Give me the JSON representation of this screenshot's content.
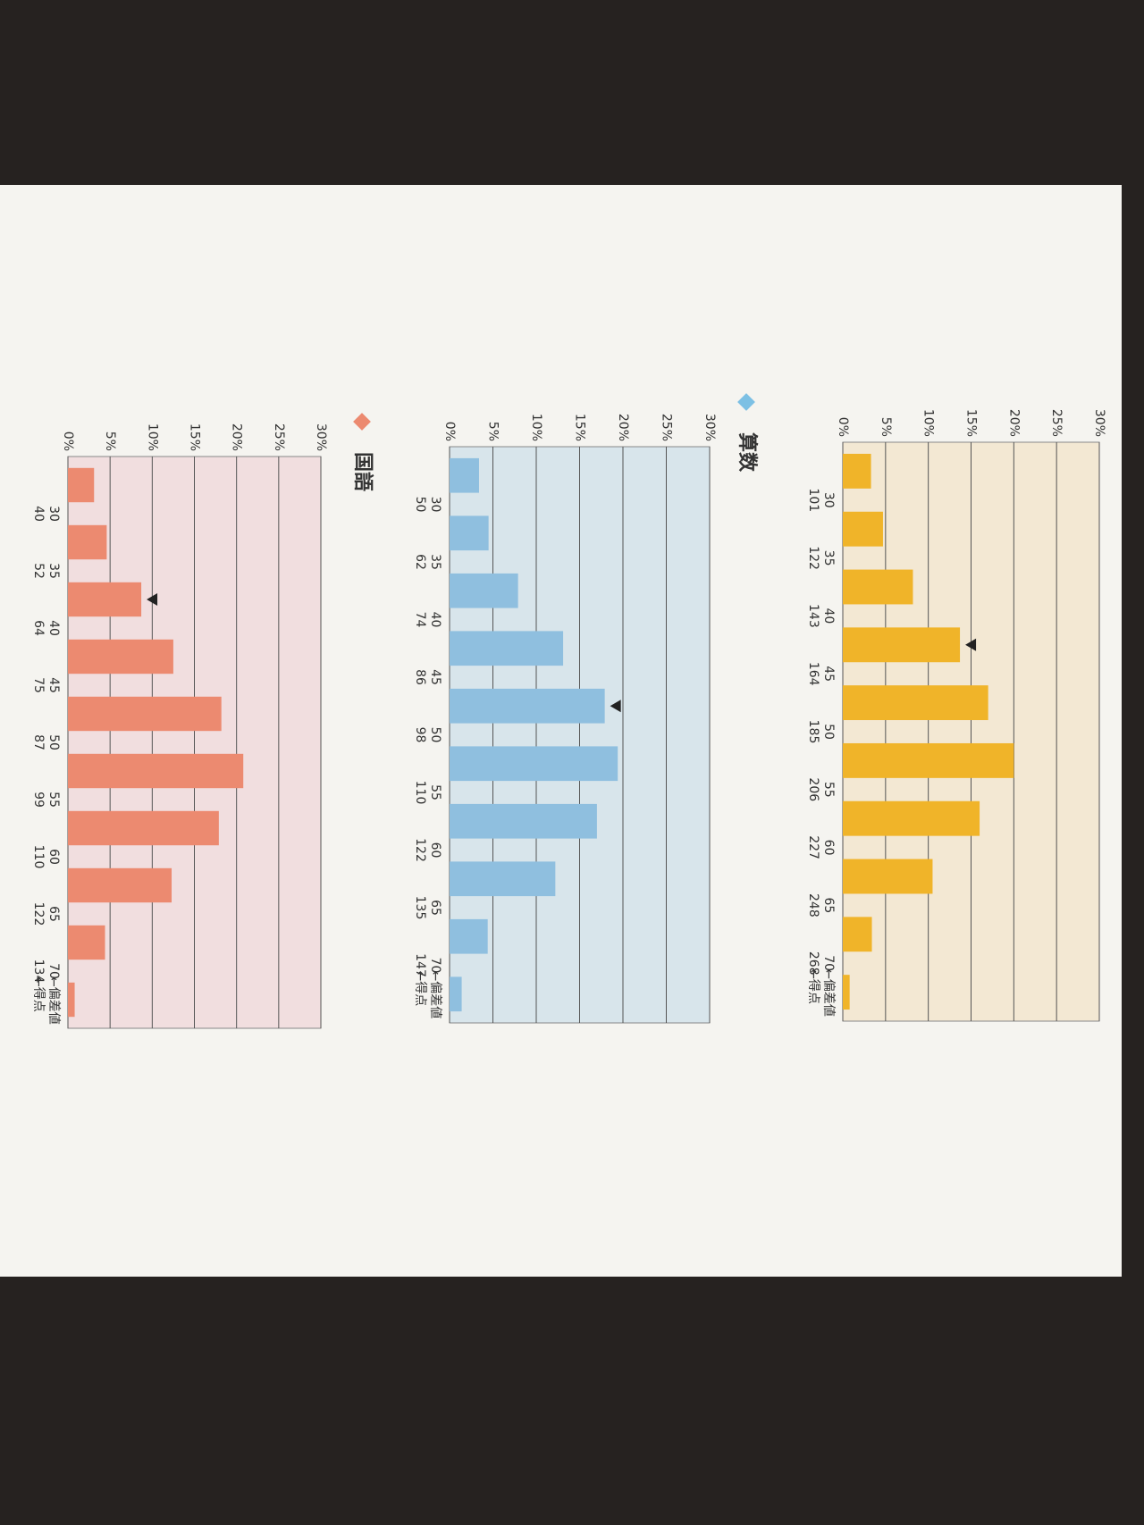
{
  "chart_data": [
    {
      "type": "bar",
      "color": "#f0b429",
      "background": "#f3e8d3",
      "values": [
        3.3,
        4.7,
        8.2,
        13.7,
        17,
        20,
        16,
        10.5,
        3.4,
        0.8
      ],
      "boundaries": [
        {
          "deviation": 30,
          "score": 101
        },
        {
          "deviation": 35,
          "score": 122
        },
        {
          "deviation": 40,
          "score": 143
        },
        {
          "deviation": 45,
          "score": 164
        },
        {
          "deviation": 50,
          "score": 185
        },
        {
          "deviation": 55,
          "score": 206
        },
        {
          "deviation": 60,
          "score": 227
        },
        {
          "deviation": 65,
          "score": 248
        },
        {
          "deviation": 70,
          "score": 268
        }
      ],
      "deviation_note": "←偏差値",
      "score_note": "←得点",
      "marker_index": 3,
      "ylim": [
        0,
        30
      ],
      "yticks": [
        {
          "value": 0,
          "label": "0%"
        },
        {
          "value": 5,
          "label": "5%"
        },
        {
          "value": 10,
          "label": "10%"
        },
        {
          "value": 15,
          "label": "15%"
        },
        {
          "value": 20,
          "label": "20%"
        },
        {
          "value": 25,
          "label": "25%"
        },
        {
          "value": 30,
          "label": "30%"
        }
      ],
      "grid": true
    },
    {
      "type": "bar",
      "title": "算数",
      "color": "#8fbfdf",
      "background": "#d8e5eb",
      "values": [
        3.4,
        4.5,
        7.9,
        13.1,
        17.9,
        19.4,
        17,
        12.2,
        4.4,
        1.4
      ],
      "boundaries": [
        {
          "deviation": 30,
          "score": 50
        },
        {
          "deviation": 35,
          "score": 62
        },
        {
          "deviation": 40,
          "score": 74
        },
        {
          "deviation": 45,
          "score": 86
        },
        {
          "deviation": 50,
          "score": 98
        },
        {
          "deviation": 55,
          "score": 110
        },
        {
          "deviation": 60,
          "score": 122
        },
        {
          "deviation": 65,
          "score": 135
        },
        {
          "deviation": 70,
          "score": 147
        }
      ],
      "deviation_note": "←偏差値",
      "score_note": "←得点",
      "marker_index": 4,
      "ylim": [
        0,
        30
      ],
      "yticks": [
        {
          "value": 0,
          "label": "0%"
        },
        {
          "value": 5,
          "label": "5%"
        },
        {
          "value": 10,
          "label": "10%"
        },
        {
          "value": 15,
          "label": "15%"
        },
        {
          "value": 20,
          "label": "20%"
        },
        {
          "value": 25,
          "label": "25%"
        },
        {
          "value": 30,
          "label": "30%"
        }
      ],
      "grid": true
    },
    {
      "type": "bar",
      "title": "国語",
      "color": "#ec8a70",
      "background": "#f1dedf",
      "values": [
        3.1,
        4.6,
        8.7,
        12.5,
        18.2,
        20.8,
        17.9,
        12.3,
        4.4,
        0.8
      ],
      "boundaries": [
        {
          "deviation": 30,
          "score": 40
        },
        {
          "deviation": 35,
          "score": 52
        },
        {
          "deviation": 40,
          "score": 64
        },
        {
          "deviation": 45,
          "score": 75
        },
        {
          "deviation": 50,
          "score": 87
        },
        {
          "deviation": 55,
          "score": 99
        },
        {
          "deviation": 60,
          "score": 110
        },
        {
          "deviation": 65,
          "score": 122
        },
        {
          "deviation": 70,
          "score": 134
        }
      ],
      "deviation_note": "←偏差値",
      "score_note": "←得点",
      "marker_index": 2,
      "ylim": [
        0,
        30
      ],
      "yticks": [
        {
          "value": 0,
          "label": "0%"
        },
        {
          "value": 5,
          "label": "5%"
        },
        {
          "value": 10,
          "label": "10%"
        },
        {
          "value": 15,
          "label": "15%"
        },
        {
          "value": 20,
          "label": "20%"
        },
        {
          "value": 25,
          "label": "25%"
        },
        {
          "value": 30,
          "label": "30%"
        }
      ],
      "grid": true
    }
  ]
}
